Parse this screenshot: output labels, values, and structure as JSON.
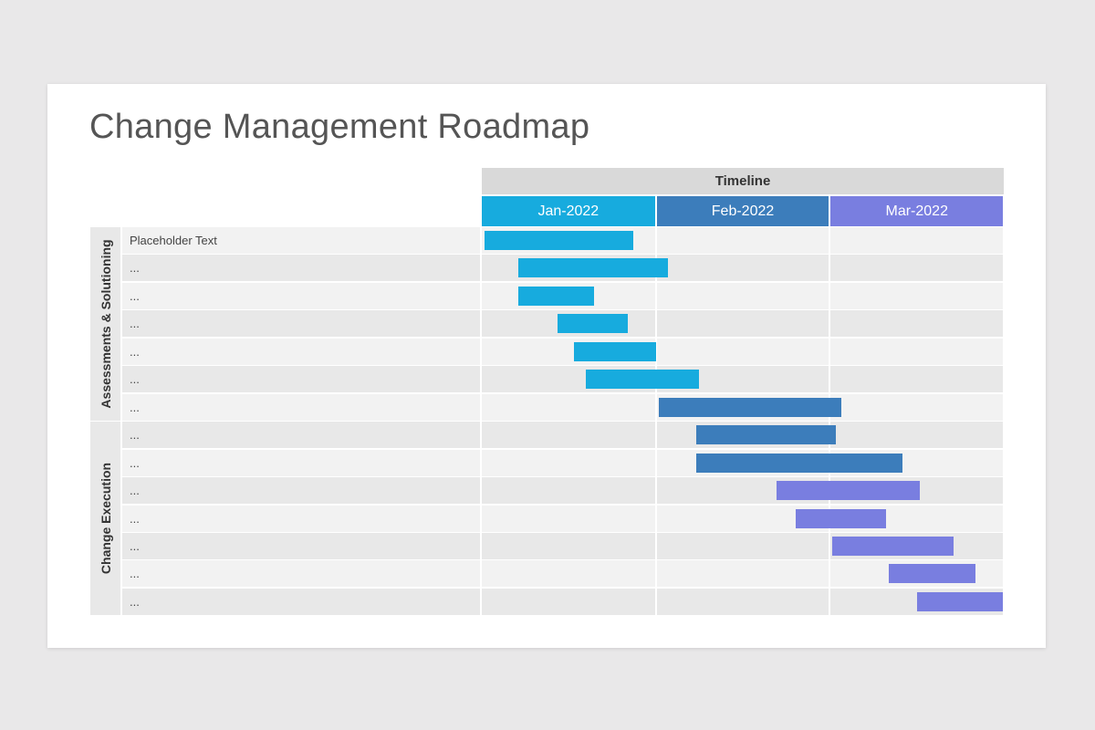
{
  "title": "Change Management Roadmap",
  "chart_data": {
    "type": "gantt",
    "header": "Timeline",
    "months": [
      {
        "label": "Jan-2022",
        "year": 2022,
        "month": 1,
        "days": 31,
        "color": "#17abde"
      },
      {
        "label": "Feb-2022",
        "year": 2022,
        "month": 2,
        "days": 28,
        "color": "#3c7dbb"
      },
      {
        "label": "Mar-2022",
        "year": 2022,
        "month": 3,
        "days": 31,
        "color": "#797ee0"
      }
    ],
    "sections": [
      {
        "label": "Assessments & Solutioning",
        "rows": 7
      },
      {
        "label": "Change Execution",
        "rows": 7
      }
    ],
    "tasks": [
      {
        "label": "Placeholder Text",
        "start": "2022-01-01",
        "end": "2022-01-27",
        "color": "#17abde"
      },
      {
        "label": "...",
        "start": "2022-01-07",
        "end": "2022-02-02",
        "color": "#17abde"
      },
      {
        "label": "...",
        "start": "2022-01-07",
        "end": "2022-01-20",
        "color": "#17abde"
      },
      {
        "label": "...",
        "start": "2022-01-14",
        "end": "2022-01-26",
        "color": "#17abde"
      },
      {
        "label": "...",
        "start": "2022-01-17",
        "end": "2022-01-31",
        "color": "#17abde"
      },
      {
        "label": "...",
        "start": "2022-01-19",
        "end": "2022-02-07",
        "color": "#17abde"
      },
      {
        "label": "...",
        "start": "2022-02-01",
        "end": "2022-03-02",
        "color": "#3c7dbb"
      },
      {
        "label": "...",
        "start": "2022-02-07",
        "end": "2022-03-01",
        "color": "#3c7dbb"
      },
      {
        "label": "...",
        "start": "2022-02-07",
        "end": "2022-03-13",
        "color": "#3c7dbb"
      },
      {
        "label": "...",
        "start": "2022-02-20",
        "end": "2022-03-16",
        "color": "#797ee0"
      },
      {
        "label": "...",
        "start": "2022-02-23",
        "end": "2022-03-10",
        "color": "#797ee0"
      },
      {
        "label": "...",
        "start": "2022-03-01",
        "end": "2022-03-22",
        "color": "#797ee0"
      },
      {
        "label": "...",
        "start": "2022-03-11",
        "end": "2022-03-26",
        "color": "#797ee0"
      },
      {
        "label": "...",
        "start": "2022-03-16",
        "end": "2022-03-31",
        "color": "#797ee0"
      }
    ]
  }
}
